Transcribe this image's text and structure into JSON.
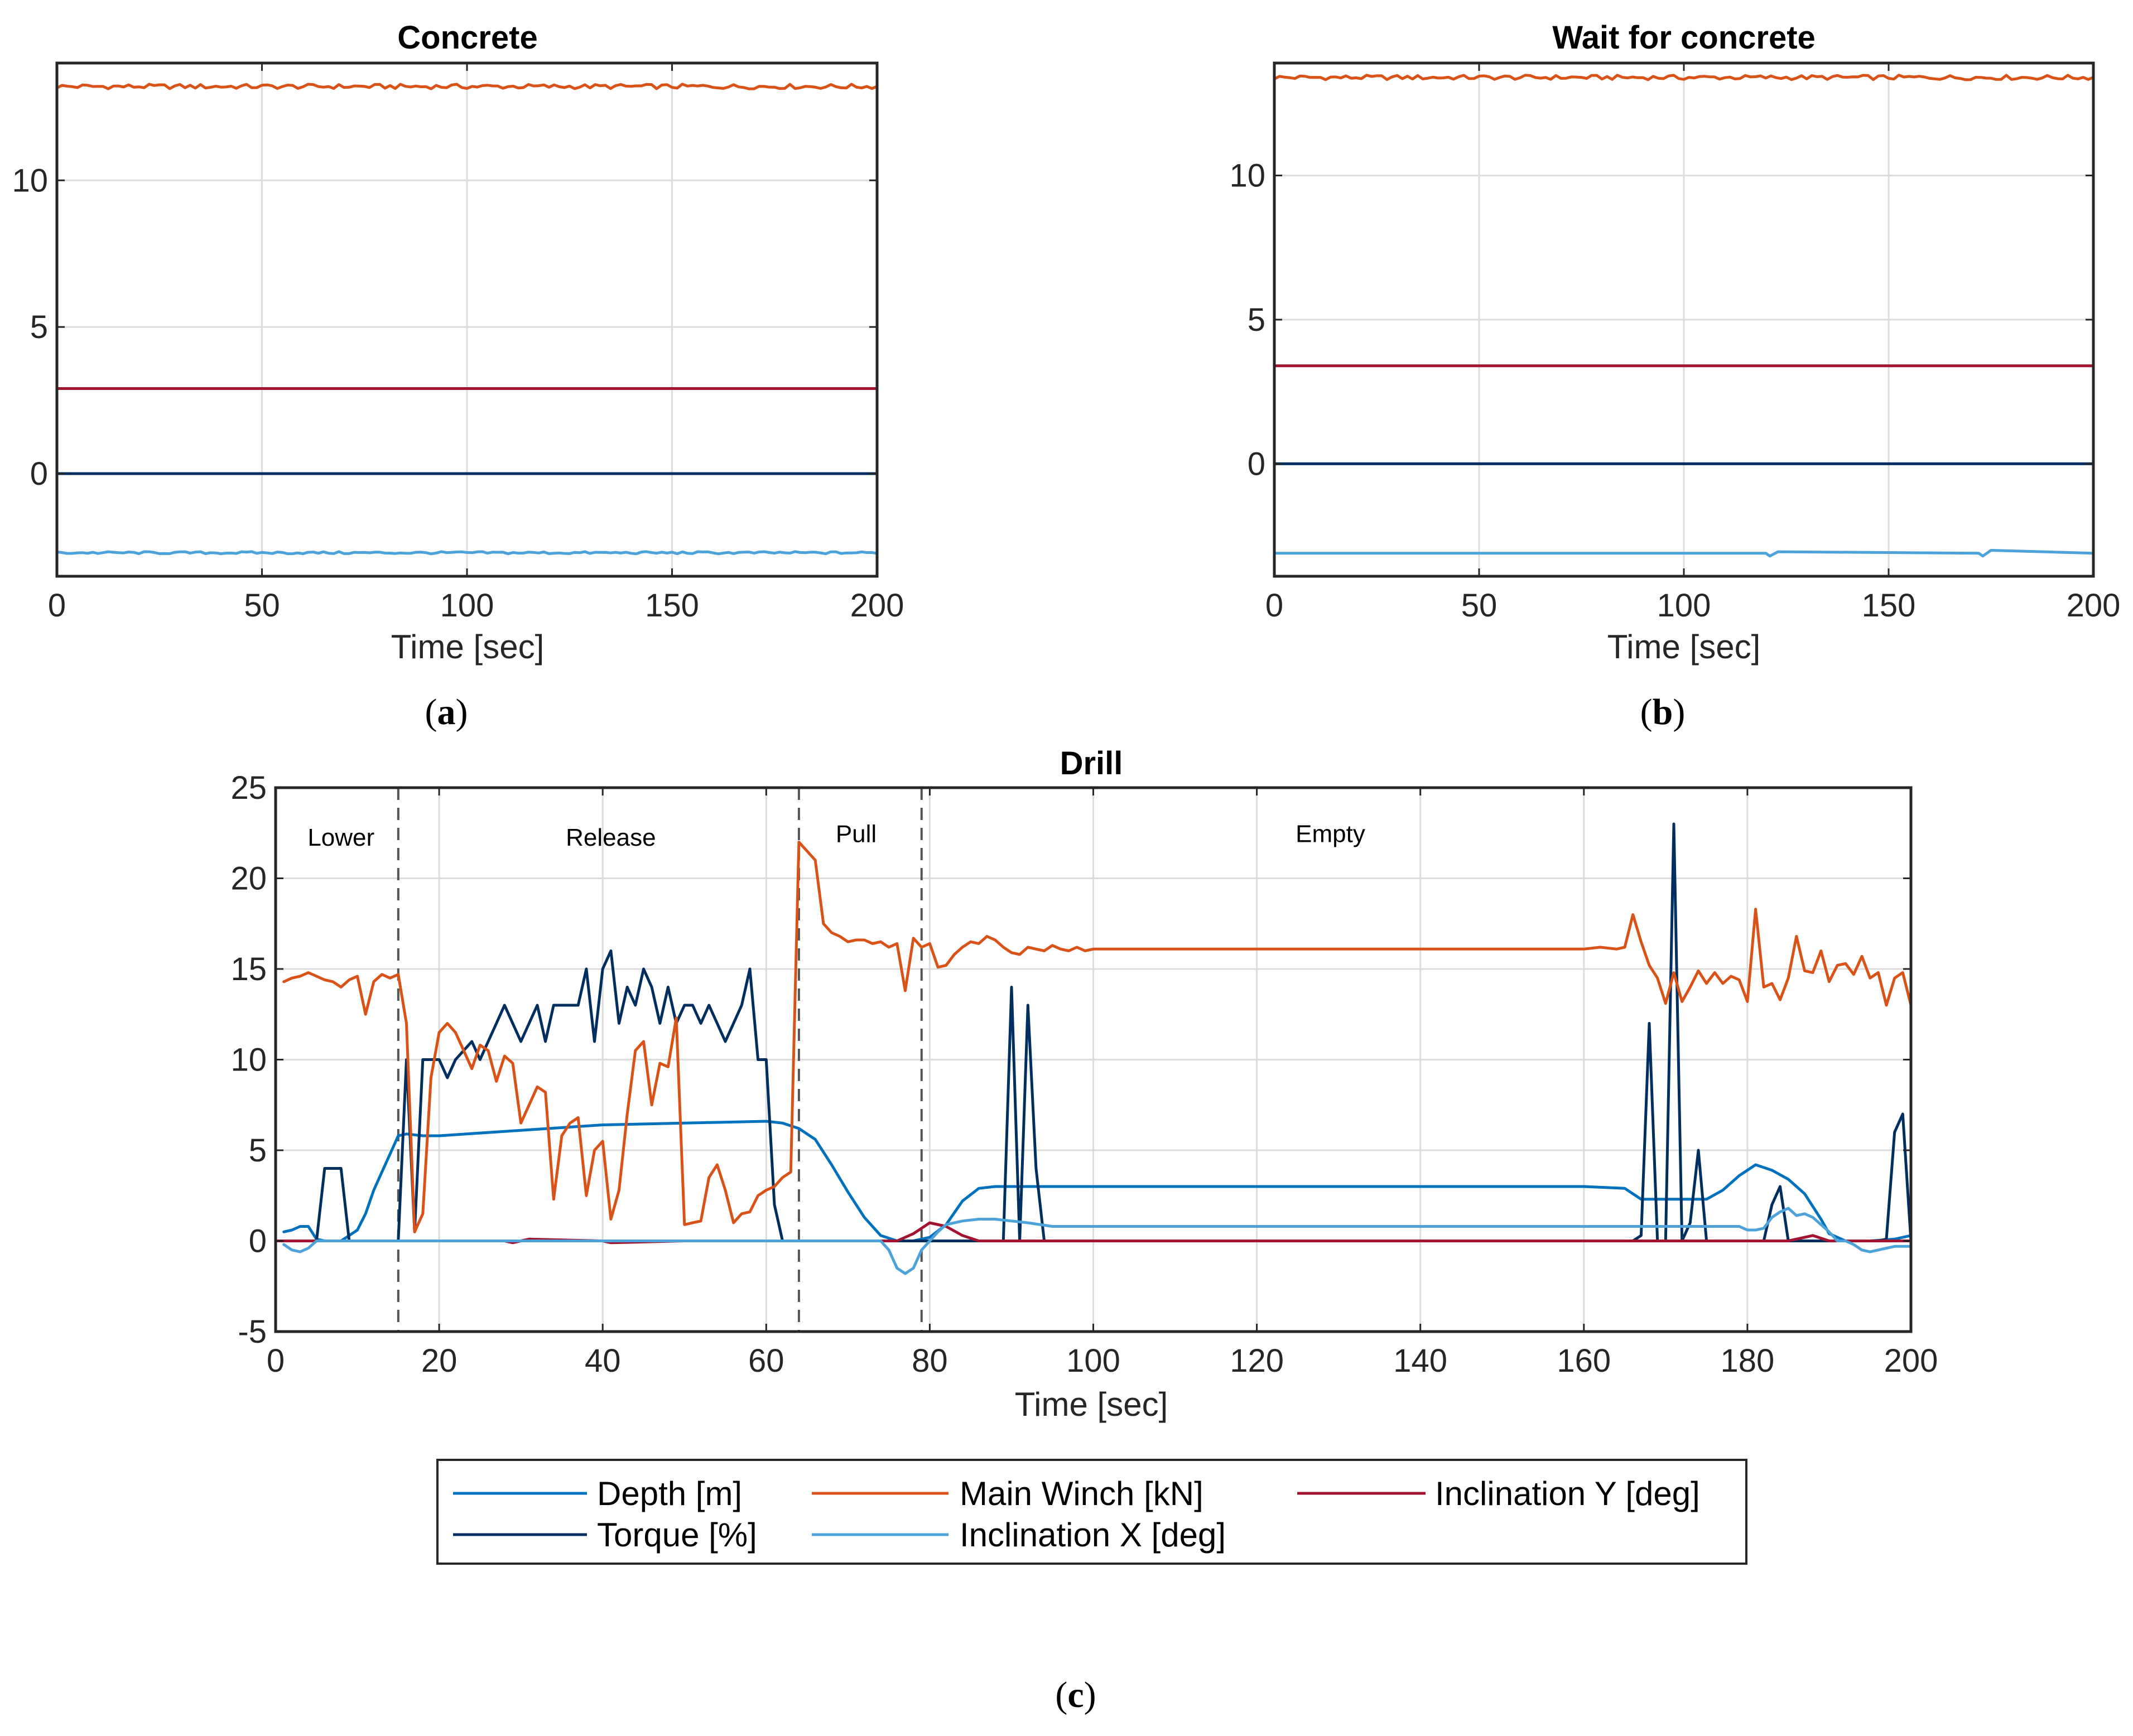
{
  "chart_data": [
    {
      "id": "a",
      "type": "line",
      "title": "Concrete",
      "xlabel": "Time [sec]",
      "ylabel": "",
      "caption_letter": "a",
      "xlim": [
        0,
        200
      ],
      "ylim": [
        -3.5,
        14
      ],
      "xticks": [
        0,
        50,
        100,
        150,
        200
      ],
      "yticks": [
        0,
        5,
        10
      ],
      "grid": true,
      "series": [
        {
          "name": "Main Winch [kN]",
          "color": "#D95319",
          "noise": 0.08,
          "x": [
            0,
            200
          ],
          "values": [
            13.2,
            13.2
          ]
        },
        {
          "name": "Inclination Y [deg]",
          "color": "#A2142F",
          "noise": 0,
          "x": [
            0,
            200
          ],
          "values": [
            2.9,
            2.9
          ]
        },
        {
          "name": "Torque [%]",
          "color": "#002F5F",
          "noise": 0,
          "x": [
            0,
            200
          ],
          "values": [
            0,
            0
          ]
        },
        {
          "name": "Inclination X [deg]",
          "color": "#4DA3D9",
          "noise": 0.04,
          "x": [
            0,
            200
          ],
          "values": [
            -2.7,
            -2.7
          ]
        }
      ]
    },
    {
      "id": "b",
      "type": "line",
      "title": "Wait for concrete",
      "xlabel": "Time [sec]",
      "ylabel": "",
      "caption_letter": "b",
      "xlim": [
        0,
        200
      ],
      "ylim": [
        -3.9,
        13.9
      ],
      "xticks": [
        0,
        50,
        100,
        150,
        200
      ],
      "yticks": [
        0,
        5,
        10
      ],
      "grid": true,
      "series": [
        {
          "name": "Main Winch [kN]",
          "color": "#D95319",
          "noise": 0.08,
          "x": [
            0,
            200
          ],
          "values": [
            13.4,
            13.4
          ]
        },
        {
          "name": "Inclination Y [deg]",
          "color": "#A2142F",
          "noise": 0,
          "x": [
            0,
            200
          ],
          "values": [
            3.4,
            3.4
          ]
        },
        {
          "name": "Torque [%]",
          "color": "#002F5F",
          "noise": 0,
          "x": [
            0,
            200
          ],
          "values": [
            0,
            0
          ]
        },
        {
          "name": "Inclination X [deg]",
          "color": "#4DA3D9",
          "noise": 0,
          "x": [
            0,
            120,
            121,
            123,
            172,
            173,
            175,
            200
          ],
          "values": [
            -3.1,
            -3.1,
            -3.2,
            -3.05,
            -3.1,
            -3.2,
            -3.0,
            -3.1
          ]
        }
      ]
    },
    {
      "id": "c",
      "type": "line",
      "title": "Drill",
      "xlabel": "Time [sec]",
      "ylabel": "",
      "caption_letter": "c",
      "xlim": [
        0,
        200
      ],
      "ylim": [
        -5,
        25
      ],
      "xticks": [
        0,
        20,
        40,
        60,
        80,
        100,
        120,
        140,
        160,
        180,
        200
      ],
      "yticks": [
        -5,
        0,
        5,
        10,
        15,
        20,
        25
      ],
      "grid": true,
      "phase_lines": [
        15,
        64,
        79
      ],
      "phases": [
        {
          "label": "Lower",
          "x": 8,
          "y": 22.3
        },
        {
          "label": "Release",
          "x": 41,
          "y": 22.3
        },
        {
          "label": "Pull",
          "x": 71,
          "y": 22.5
        },
        {
          "label": "Empty",
          "x": 129,
          "y": 22.5
        }
      ],
      "series": [
        {
          "name": "Depth [m]",
          "color": "#0072BD",
          "x": [
            1,
            2,
            3,
            4,
            5,
            6,
            7,
            8,
            9,
            10,
            11,
            12,
            13,
            14,
            15,
            16,
            18,
            20,
            30,
            40,
            50,
            60,
            62,
            64,
            66,
            68,
            70,
            72,
            74,
            76,
            78,
            80,
            82,
            84,
            86,
            88,
            100,
            120,
            140,
            160,
            165,
            166,
            167,
            175,
            177,
            179,
            181,
            183,
            185,
            187,
            189,
            190,
            192,
            195,
            198,
            200
          ],
          "values": [
            0.5,
            0.6,
            0.8,
            0.8,
            0.1,
            0,
            0,
            0,
            0.3,
            0.6,
            1.5,
            2.8,
            3.8,
            4.8,
            5.8,
            5.9,
            5.8,
            5.8,
            6.1,
            6.4,
            6.5,
            6.6,
            6.5,
            6.2,
            5.6,
            4.2,
            2.7,
            1.3,
            0.3,
            0,
            0,
            0.2,
            0.9,
            2.2,
            2.9,
            3.0,
            3.0,
            3.0,
            3.0,
            3.0,
            2.9,
            2.6,
            2.3,
            2.3,
            2.8,
            3.6,
            4.2,
            3.9,
            3.4,
            2.6,
            1.2,
            0.4,
            0,
            0,
            0.1,
            0.3
          ]
        },
        {
          "name": "Torque [%]",
          "color": "#002F5F",
          "x": [
            1,
            5,
            6,
            8,
            9,
            15,
            16,
            17,
            18,
            20,
            21,
            22,
            24,
            25,
            26,
            27,
            28,
            30,
            31,
            32,
            33,
            34,
            35,
            36,
            37,
            38,
            39,
            40,
            41,
            42,
            43,
            44,
            45,
            46,
            47,
            48,
            49,
            50,
            51,
            52,
            53,
            54,
            55,
            56,
            57,
            58,
            59,
            60,
            61,
            62,
            89,
            90,
            91,
            92,
            93,
            94,
            166,
            167,
            168,
            169,
            170,
            171,
            172,
            173,
            174,
            175,
            182,
            183,
            184,
            185,
            193,
            196,
            197,
            198,
            199,
            200
          ],
          "values": [
            0,
            0,
            4,
            4,
            0,
            0,
            10,
            0.5,
            10,
            10,
            9,
            10,
            11,
            10,
            11,
            12,
            13,
            11,
            12,
            13,
            11,
            13,
            13,
            13,
            13,
            15,
            11,
            15,
            16,
            12,
            14,
            13,
            15,
            14,
            12,
            14,
            12,
            13,
            13,
            12,
            13,
            12,
            11,
            12,
            13,
            15,
            10,
            10,
            2,
            0,
            0,
            14,
            0,
            13,
            4,
            0,
            0,
            0.3,
            12,
            0,
            0,
            23,
            0,
            1,
            5,
            0,
            0,
            2,
            3,
            0,
            0,
            0,
            0.1,
            6,
            7,
            0
          ]
        },
        {
          "name": "Main Winch [kN]",
          "color": "#D95319",
          "x": [
            1,
            2,
            3,
            4,
            5,
            6,
            7,
            8,
            9,
            10,
            11,
            12,
            13,
            14,
            15,
            16,
            17,
            18,
            19,
            20,
            21,
            22,
            23,
            24,
            25,
            26,
            27,
            28,
            29,
            30,
            31,
            32,
            33,
            34,
            35,
            36,
            37,
            38,
            39,
            40,
            41,
            42,
            43,
            44,
            45,
            46,
            47,
            48,
            49,
            50,
            51,
            52,
            53,
            54,
            55,
            56,
            57,
            58,
            59,
            60,
            61,
            62,
            63,
            64,
            65,
            66,
            67,
            68,
            69,
            70,
            71,
            72,
            73,
            74,
            75,
            76,
            77,
            78,
            79,
            80,
            81,
            82,
            83,
            84,
            85,
            86,
            87,
            88,
            89,
            90,
            91,
            92,
            93,
            94,
            95,
            96,
            97,
            98,
            99,
            100,
            110,
            120,
            130,
            140,
            150,
            160,
            162,
            164,
            165,
            166,
            167,
            168,
            169,
            170,
            171,
            172,
            173,
            174,
            175,
            176,
            177,
            178,
            179,
            180,
            181,
            182,
            183,
            184,
            185,
            186,
            187,
            188,
            189,
            190,
            191,
            192,
            193,
            194,
            195,
            196,
            197,
            198,
            199,
            200
          ],
          "values": [
            14.3,
            14.5,
            14.6,
            14.8,
            14.6,
            14.4,
            14.3,
            14.0,
            14.4,
            14.6,
            12.5,
            14.3,
            14.7,
            14.5,
            14.7,
            12.0,
            0.5,
            1.5,
            9.0,
            11.5,
            12.0,
            11.5,
            10.5,
            9.5,
            10.8,
            10.5,
            8.8,
            10.2,
            9.8,
            6.5,
            7.5,
            8.5,
            8.2,
            2.3,
            5.8,
            6.5,
            6.8,
            2.5,
            5.0,
            5.5,
            1.2,
            2.8,
            7.0,
            10.5,
            11.0,
            7.5,
            9.8,
            9.6,
            12.3,
            0.9,
            1.0,
            1.1,
            3.5,
            4.2,
            2.8,
            1.0,
            1.5,
            1.6,
            2.5,
            2.8,
            3.0,
            3.5,
            3.8,
            22.0,
            21.5,
            21.0,
            17.5,
            17.0,
            16.8,
            16.5,
            16.6,
            16.6,
            16.4,
            16.5,
            16.2,
            16.4,
            13.8,
            16.7,
            16.2,
            16.4,
            15.1,
            15.2,
            15.8,
            16.2,
            16.5,
            16.4,
            16.8,
            16.6,
            16.2,
            15.9,
            15.8,
            16.2,
            16.1,
            16.0,
            16.3,
            16.1,
            16.0,
            16.2,
            16.0,
            16.1,
            16.1,
            16.1,
            16.1,
            16.1,
            16.1,
            16.1,
            16.2,
            16.1,
            16.2,
            18.0,
            16.5,
            15.2,
            14.5,
            13.1,
            14.8,
            13.2,
            14.0,
            14.9,
            14.2,
            14.8,
            14.2,
            14.6,
            14.4,
            13.2,
            18.3,
            14.0,
            14.2,
            13.3,
            14.5,
            16.8,
            14.9,
            14.8,
            16.0,
            14.3,
            15.2,
            15.3,
            14.7,
            15.7,
            14.5,
            14.8,
            13.0,
            14.5,
            14.8,
            13.0
          ]
        },
        {
          "name": "Inclination Y [deg]",
          "color": "#A2142F",
          "x": [
            0,
            28,
            29,
            30,
            31,
            40,
            41,
            50,
            51,
            76,
            78,
            80,
            82,
            84,
            86,
            88,
            180,
            185,
            188,
            190,
            200
          ],
          "values": [
            0,
            0,
            -0.1,
            0,
            0.1,
            0,
            -0.1,
            0,
            0,
            0,
            0.4,
            1.0,
            0.8,
            0.3,
            0,
            0,
            0,
            0,
            0.3,
            0,
            0
          ]
        },
        {
          "name": "Inclination X [deg]",
          "color": "#4DA3D9",
          "x": [
            1,
            2,
            3,
            4,
            5,
            6,
            20,
            60,
            74,
            75,
            76,
            77,
            78,
            79,
            80,
            81,
            82,
            84,
            86,
            88,
            90,
            92,
            95,
            100,
            110,
            120,
            150,
            170,
            178,
            179,
            180,
            181,
            182,
            183,
            184,
            185,
            186,
            187,
            188,
            190,
            191,
            192,
            193,
            194,
            195,
            196,
            197,
            198,
            199,
            200
          ],
          "values": [
            -0.2,
            -0.5,
            -0.6,
            -0.4,
            0,
            0,
            0,
            0,
            0,
            -0.5,
            -1.5,
            -1.8,
            -1.5,
            -0.5,
            0,
            0.5,
            0.9,
            1.1,
            1.2,
            1.2,
            1.1,
            1.0,
            0.8,
            0.8,
            0.8,
            0.8,
            0.8,
            0.8,
            0.8,
            0.8,
            0.6,
            0.6,
            0.7,
            1.3,
            1.6,
            1.8,
            1.4,
            1.5,
            1.3,
            0.5,
            0,
            0,
            -0.2,
            -0.5,
            -0.6,
            -0.5,
            -0.4,
            -0.3,
            -0.3,
            -0.3
          ]
        }
      ],
      "legend": {
        "placement": "bottom-center",
        "rows": [
          [
            "Depth [m]",
            "Main Winch [kN]",
            "Inclination Y [deg]"
          ],
          [
            "Torque [%]",
            "Inclination X [deg]"
          ]
        ]
      }
    }
  ]
}
